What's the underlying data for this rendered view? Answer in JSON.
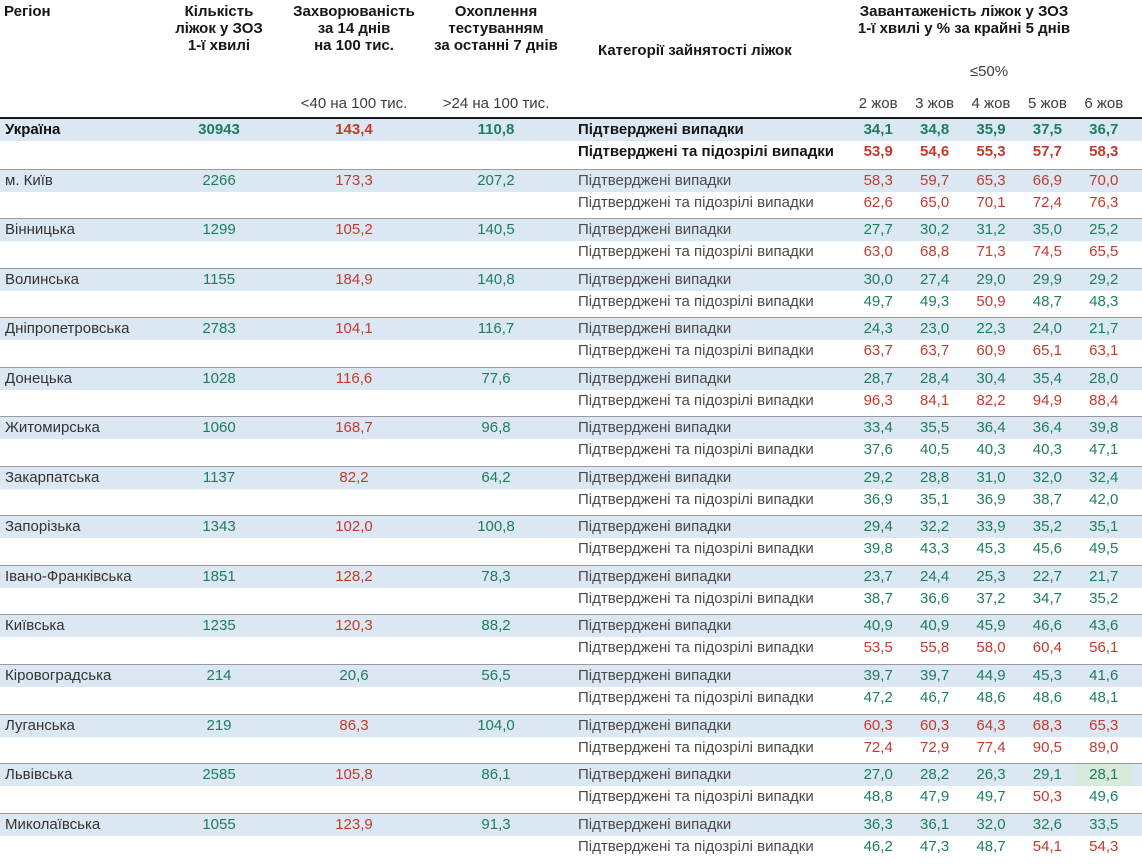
{
  "header": {
    "region": "Регіон",
    "beds": "Кількість\nліжок у ЗОЗ\n1-ї хвилі",
    "incidence": "Захворюваність\nза 14 днів\nна 100 тис.",
    "testing": "Охоплення\nтестуванням\nза останні 7 днів",
    "category": "Категорії зайнятості ліжок",
    "occupancy": "Завантаженість ліжок у ЗОЗ\n1-ї хвилі у % за крайні 5 днів",
    "incidence_threshold": "<40 на 100 тис.",
    "testing_threshold": ">24 на 100 тис.",
    "occupancy_threshold": "≤50%",
    "dates": [
      "2 жов",
      "3 жов",
      "4 жов",
      "5 жов",
      "6 жов"
    ]
  },
  "labels": {
    "confirmed": "Підтверджені випадки",
    "suspected": "Підтверджені та підозрілі випадки"
  },
  "colors": {
    "good": "#1d7d5f",
    "bad": "#c23b2e",
    "row_band": "#dbe7f2",
    "highlight_cell": "#d8ead9"
  },
  "chart_data": {
    "type": "table",
    "value_rules": {
      "incidence_red_if_at_least": 40,
      "occupancy_red_if_greater_than": 50
    },
    "regions": [
      {
        "name": "Україна",
        "bold": true,
        "beds": "30943",
        "incidence": "143,4",
        "testing": "110,8",
        "confirmed": [
          "34,1",
          "34,8",
          "35,9",
          "37,5",
          "36,7"
        ],
        "suspected": [
          "53,9",
          "54,6",
          "55,3",
          "57,7",
          "58,3"
        ]
      },
      {
        "name": "м. Київ",
        "beds": "2266",
        "incidence": "173,3",
        "testing": "207,2",
        "confirmed": [
          "58,3",
          "59,7",
          "65,3",
          "66,9",
          "70,0"
        ],
        "suspected": [
          "62,6",
          "65,0",
          "70,1",
          "72,4",
          "76,3"
        ]
      },
      {
        "name": "Вінницька",
        "beds": "1299",
        "incidence": "105,2",
        "testing": "140,5",
        "confirmed": [
          "27,7",
          "30,2",
          "31,2",
          "35,0",
          "25,2"
        ],
        "suspected": [
          "63,0",
          "68,8",
          "71,3",
          "74,5",
          "65,5"
        ]
      },
      {
        "name": "Волинська",
        "beds": "1155",
        "incidence": "184,9",
        "testing": "140,8",
        "confirmed": [
          "30,0",
          "27,4",
          "29,0",
          "29,9",
          "29,2"
        ],
        "suspected": [
          "49,7",
          "49,3",
          "50,9",
          "48,7",
          "48,3"
        ]
      },
      {
        "name": "Дніпропетровська",
        "beds": "2783",
        "incidence": "104,1",
        "testing": "116,7",
        "confirmed": [
          "24,3",
          "23,0",
          "22,3",
          "24,0",
          "21,7"
        ],
        "suspected": [
          "63,7",
          "63,7",
          "60,9",
          "65,1",
          "63,1"
        ]
      },
      {
        "name": "Донецька",
        "beds": "1028",
        "incidence": "116,6",
        "testing": "77,6",
        "confirmed": [
          "28,7",
          "28,4",
          "30,4",
          "35,4",
          "28,0"
        ],
        "suspected": [
          "96,3",
          "84,1",
          "82,2",
          "94,9",
          "88,4"
        ]
      },
      {
        "name": "Житомирська",
        "beds": "1060",
        "incidence": "168,7",
        "testing": "96,8",
        "confirmed": [
          "33,4",
          "35,5",
          "36,4",
          "36,4",
          "39,8"
        ],
        "suspected": [
          "37,6",
          "40,5",
          "40,3",
          "40,3",
          "47,1"
        ]
      },
      {
        "name": "Закарпатська",
        "beds": "1137",
        "incidence": "82,2",
        "testing": "64,2",
        "confirmed": [
          "29,2",
          "28,8",
          "31,0",
          "32,0",
          "32,4"
        ],
        "suspected": [
          "36,9",
          "35,1",
          "36,9",
          "38,7",
          "42,0"
        ]
      },
      {
        "name": "Запорізька",
        "beds": "1343",
        "incidence": "102,0",
        "testing": "100,8",
        "confirmed": [
          "29,4",
          "32,2",
          "33,9",
          "35,2",
          "35,1"
        ],
        "suspected": [
          "39,8",
          "43,3",
          "45,3",
          "45,6",
          "49,5"
        ]
      },
      {
        "name": "Івано-Франківська",
        "beds": "1851",
        "incidence": "128,2",
        "testing": "78,3",
        "confirmed": [
          "23,7",
          "24,4",
          "25,3",
          "22,7",
          "21,7"
        ],
        "suspected": [
          "38,7",
          "36,6",
          "37,2",
          "34,7",
          "35,2"
        ]
      },
      {
        "name": "Київська",
        "beds": "1235",
        "incidence": "120,3",
        "testing": "88,2",
        "confirmed": [
          "40,9",
          "40,9",
          "45,9",
          "46,6",
          "43,6"
        ],
        "suspected": [
          "53,5",
          "55,8",
          "58,0",
          "60,4",
          "56,1"
        ]
      },
      {
        "name": "Кіровоградська",
        "beds": "214",
        "incidence": "20,6",
        "testing": "56,5",
        "confirmed": [
          "39,7",
          "39,7",
          "44,9",
          "45,3",
          "41,6"
        ],
        "suspected": [
          "47,2",
          "46,7",
          "48,6",
          "48,6",
          "48,1"
        ]
      },
      {
        "name": "Луганська",
        "beds": "219",
        "incidence": "86,3",
        "testing": "104,0",
        "confirmed": [
          "60,3",
          "60,3",
          "64,3",
          "68,3",
          "65,3"
        ],
        "suspected": [
          "72,4",
          "72,9",
          "77,4",
          "90,5",
          "89,0"
        ]
      },
      {
        "name": "Львівська",
        "beds": "2585",
        "incidence": "105,8",
        "testing": "86,1",
        "confirmed": [
          "27,0",
          "28,2",
          "26,3",
          "29,1",
          "28,1"
        ],
        "confirmed_highlight": 4,
        "suspected": [
          "48,8",
          "47,9",
          "49,7",
          "50,3",
          "49,6"
        ]
      },
      {
        "name": "Миколаївська",
        "beds": "1055",
        "incidence": "123,9",
        "testing": "91,3",
        "confirmed": [
          "36,3",
          "36,1",
          "32,0",
          "32,6",
          "33,5"
        ],
        "suspected": [
          "46,2",
          "47,3",
          "48,7",
          "54,1",
          "54,3"
        ]
      }
    ]
  }
}
